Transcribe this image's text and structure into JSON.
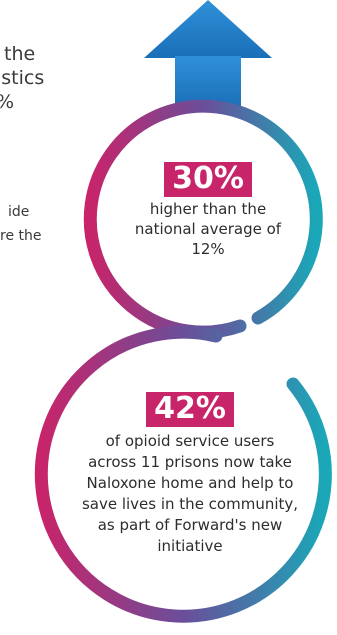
{
  "cut_text_top": [
    "the",
    "istics",
    "%"
  ],
  "cut_text_mid": [
    "ide",
    "re the"
  ],
  "stat_upper": {
    "value": "30%",
    "description_lines": [
      "higher than the",
      "national average of",
      "12%"
    ]
  },
  "stat_lower": {
    "value": "42%",
    "description_lines": [
      "of opioid service users",
      "across 11 prisons now take",
      "Naloxone home and help to",
      "save lives in the community,",
      "as part of Forward's new",
      "initiative"
    ]
  },
  "colors": {
    "badge": "#c8246a",
    "gradient_start": "#c8246a",
    "gradient_mid": "#6a4e9a",
    "gradient_end": "#1aa8b8",
    "arrow_top": "#2f90d8",
    "arrow_bottom": "#1a6fb8"
  }
}
